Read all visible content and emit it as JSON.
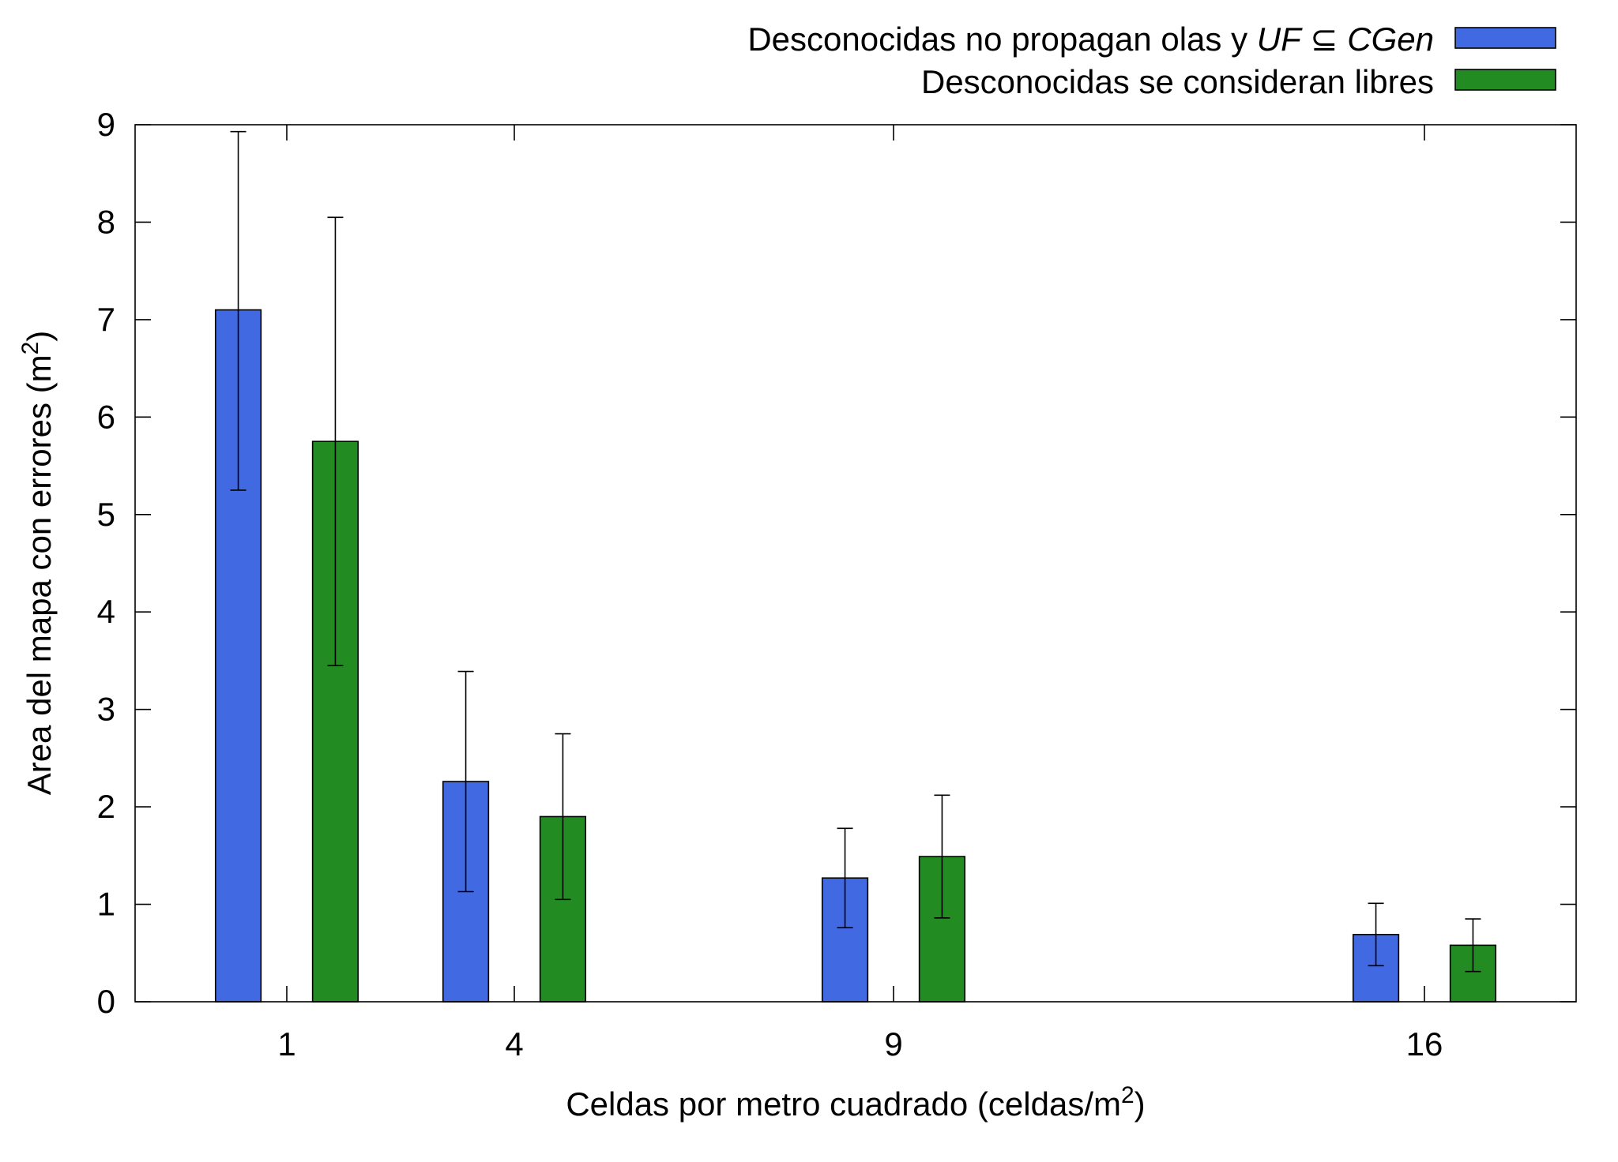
{
  "chart_data": {
    "type": "bar",
    "categories": [
      "1",
      "4",
      "9",
      "16"
    ],
    "x": [
      1,
      4,
      9,
      16
    ],
    "series": [
      {
        "name": "Desconocidas no propagan olas y UF ⊆ CGen",
        "color": "#4169E1",
        "values": [
          7.1,
          2.26,
          1.27,
          0.69
        ],
        "error_low": [
          5.25,
          1.13,
          0.76,
          0.37
        ],
        "error_high": [
          8.93,
          3.39,
          1.78,
          1.01
        ]
      },
      {
        "name": "Desconocidas se consideran libres",
        "color": "#228B22",
        "values": [
          5.75,
          1.9,
          1.49,
          0.58
        ],
        "error_low": [
          3.45,
          1.05,
          0.86,
          0.31
        ],
        "error_high": [
          8.05,
          2.75,
          2.12,
          0.85
        ]
      }
    ],
    "legend": {
      "position": "top-right",
      "entries": [
        {
          "prefix": "Desconocidas no propagan olas y ",
          "italic_1": "UF",
          "middle": " ⊆ ",
          "italic_2": "CGen"
        },
        {
          "prefix": "Desconocidas se consideran libres"
        }
      ]
    },
    "xlabel": {
      "text": "Celdas por metro cuadrado (celdas/m",
      "sup": "2",
      "suffix": ")"
    },
    "ylabel": {
      "text": "Area del mapa con errores (m",
      "sup": "2",
      "suffix": ")"
    },
    "xlim": [
      -1,
      18
    ],
    "ylim": [
      0,
      9
    ],
    "yticks": [
      0,
      1,
      2,
      3,
      4,
      5,
      6,
      7,
      8,
      9
    ],
    "grid": false
  }
}
